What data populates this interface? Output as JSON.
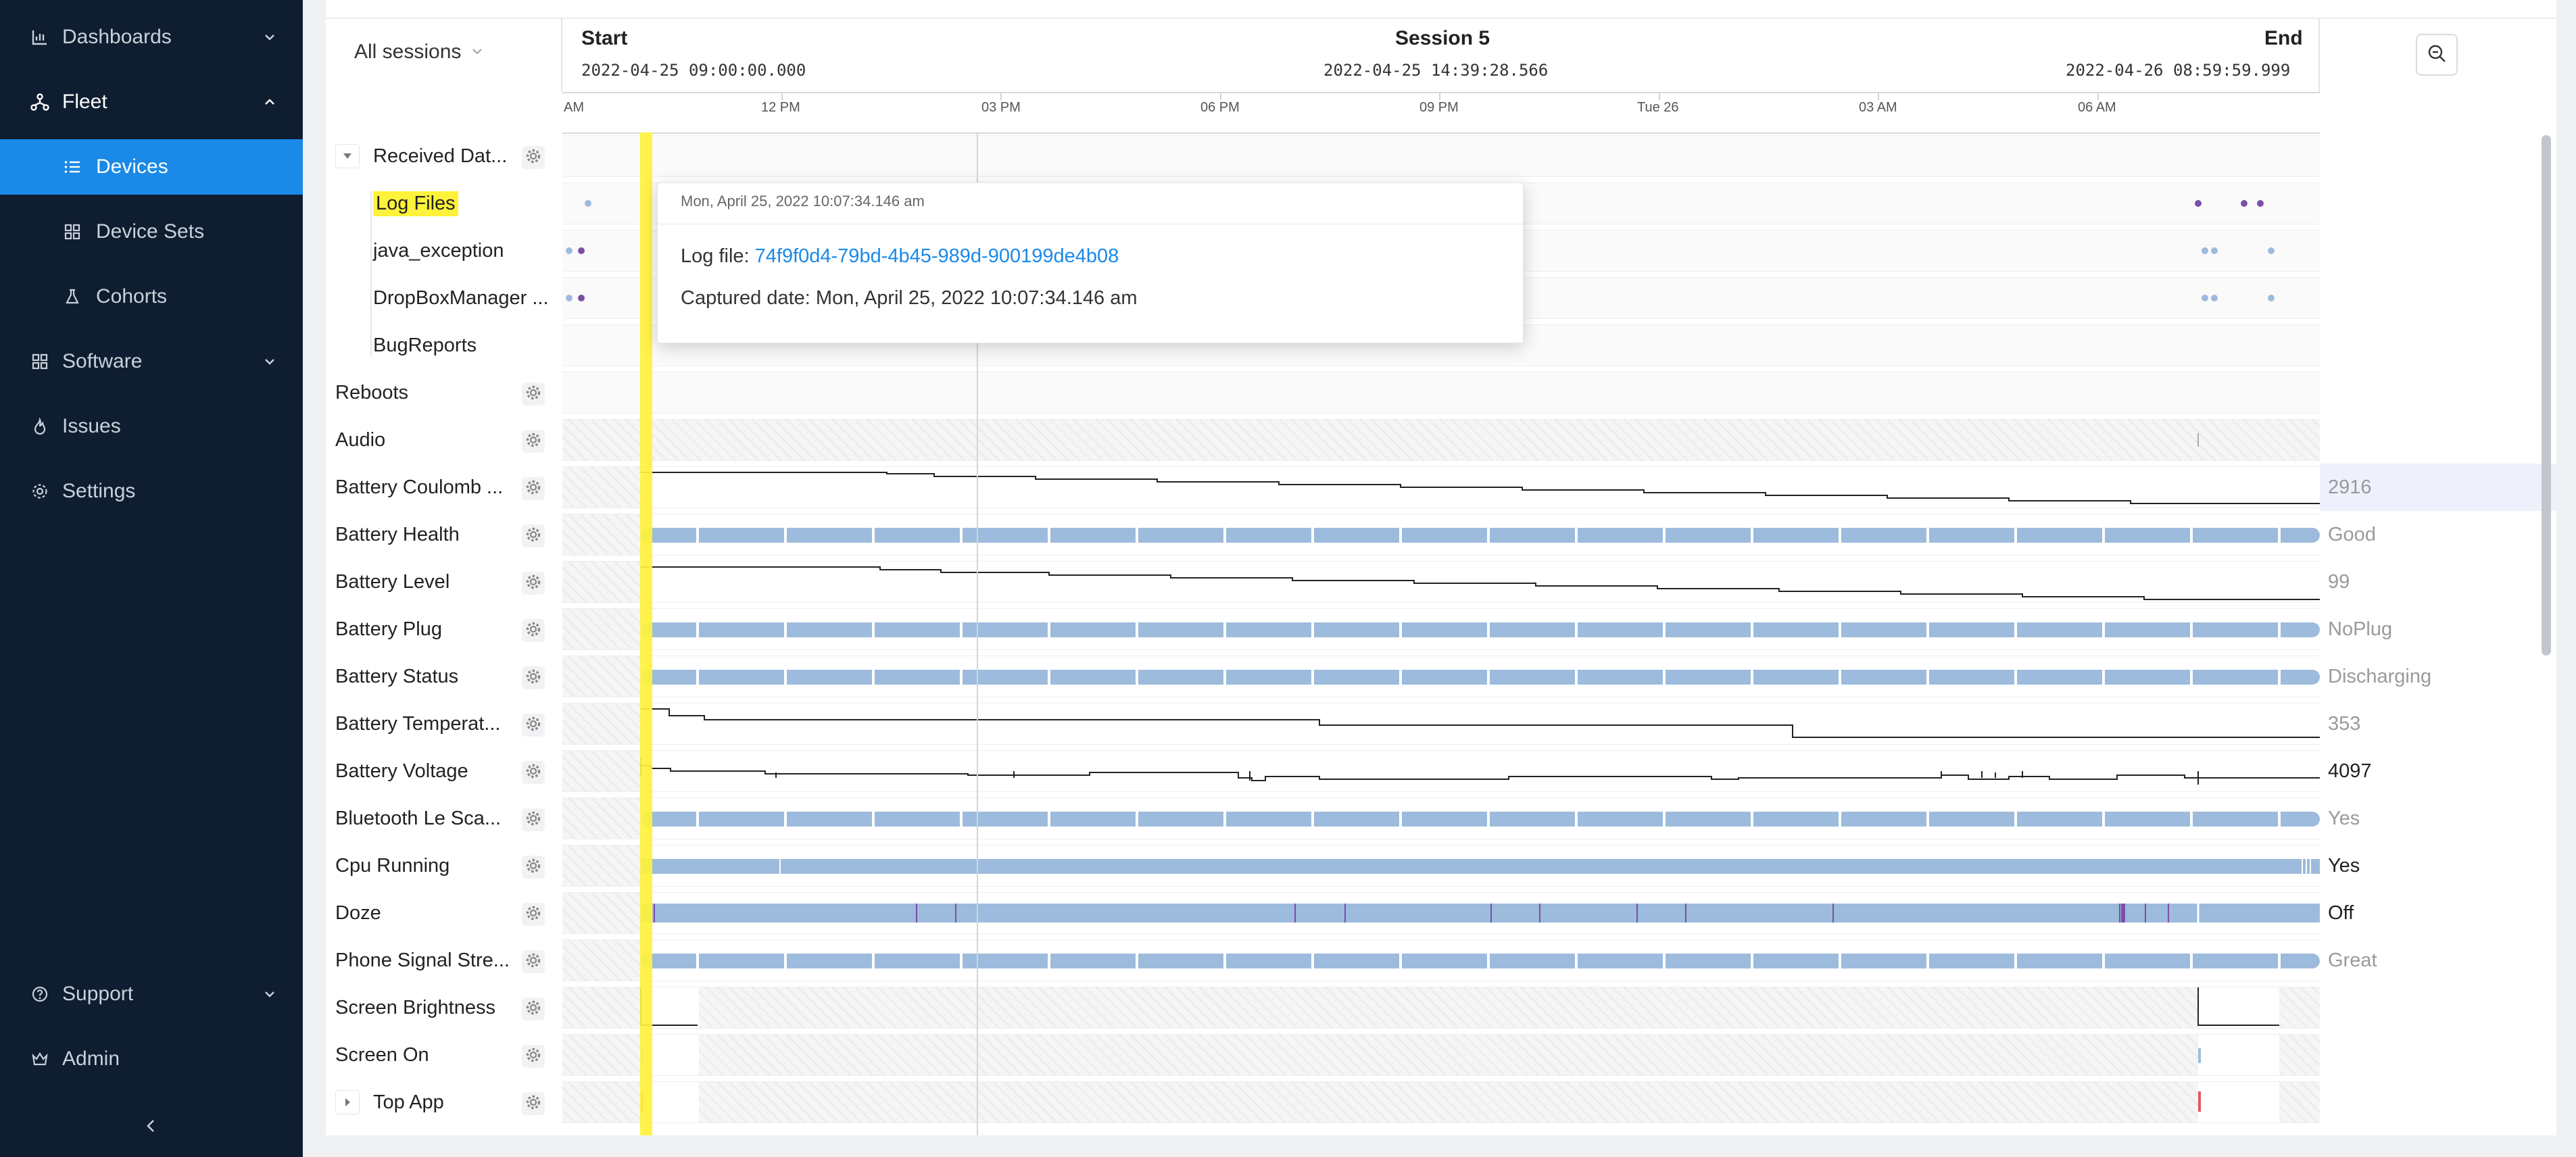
{
  "sidebar": {
    "dashboards": "Dashboards",
    "fleet": "Fleet",
    "devices": "Devices",
    "device_sets": "Device Sets",
    "cohorts": "Cohorts",
    "software": "Software",
    "issues": "Issues",
    "settings": "Settings",
    "support": "Support",
    "admin": "Admin"
  },
  "header": {
    "session_select": "All sessions",
    "start_label": "Start",
    "start_time": "2022-04-25 09:00:00.000",
    "session_label": "Session 5",
    "session_time": "2022-04-25 14:39:28.566",
    "end_label": "End",
    "end_time": "2022-04-26 08:59:59.999"
  },
  "axis": {
    "ticks": [
      "AM",
      "12 PM",
      "03 PM",
      "06 PM",
      "09 PM",
      "Tue 26",
      "03 AM",
      "06 AM"
    ]
  },
  "rows": {
    "received_data": "Received Dat...",
    "log_files": "Log Files",
    "java_exception": "java_exception",
    "dropbox": "DropBoxManager ...",
    "bugreports": "BugReports",
    "reboots": "Reboots",
    "audio": "Audio",
    "battery_coulomb": "Battery Coulomb ...",
    "battery_health": "Battery Health",
    "battery_level": "Battery Level",
    "battery_plug": "Battery Plug",
    "battery_status": "Battery Status",
    "battery_temperature": "Battery Temperat...",
    "battery_voltage": "Battery Voltage",
    "bluetooth": "Bluetooth Le Sca...",
    "cpu_running": "Cpu Running",
    "doze": "Doze",
    "phone_signal": "Phone Signal Stre...",
    "screen_brightness": "Screen Brightness",
    "screen_on": "Screen On",
    "top_app": "Top App"
  },
  "values": {
    "battery_coulomb": "2916",
    "battery_health": "Good",
    "battery_level": "99",
    "battery_plug": "NoPlug",
    "battery_status": "Discharging",
    "battery_temperature": "353",
    "battery_voltage": "4097",
    "bluetooth": "Yes",
    "cpu_running": "Yes",
    "doze": "Off",
    "phone_signal": "Great"
  },
  "tooltip": {
    "datetime": "Mon, April 25, 2022 10:07:34.146 am",
    "log_file_label": "Log file:",
    "log_file_value": "74f9f0d4-79bd-4b45-989d-900199de4b08",
    "captured_label": "Captured date:",
    "captured_value": "Mon, April 25, 2022 10:07:34.146 am"
  },
  "colors": {
    "sidebar_bg": "#0f1d30",
    "accent": "#1a89e8",
    "highlight": "#fff23a",
    "pill": "#9dbbdc",
    "event_dot": "#7a4fa8"
  },
  "icons": {
    "dashboards": "bar-chart-icon",
    "fleet": "network-icon",
    "devices": "list-icon",
    "device_sets": "grid-icon",
    "cohorts": "flask-icon",
    "software": "apps-icon",
    "issues": "flame-icon",
    "settings": "gear-icon",
    "support": "help-circle-icon",
    "admin": "crown-icon",
    "zoom_out": "zoom-out-icon"
  }
}
